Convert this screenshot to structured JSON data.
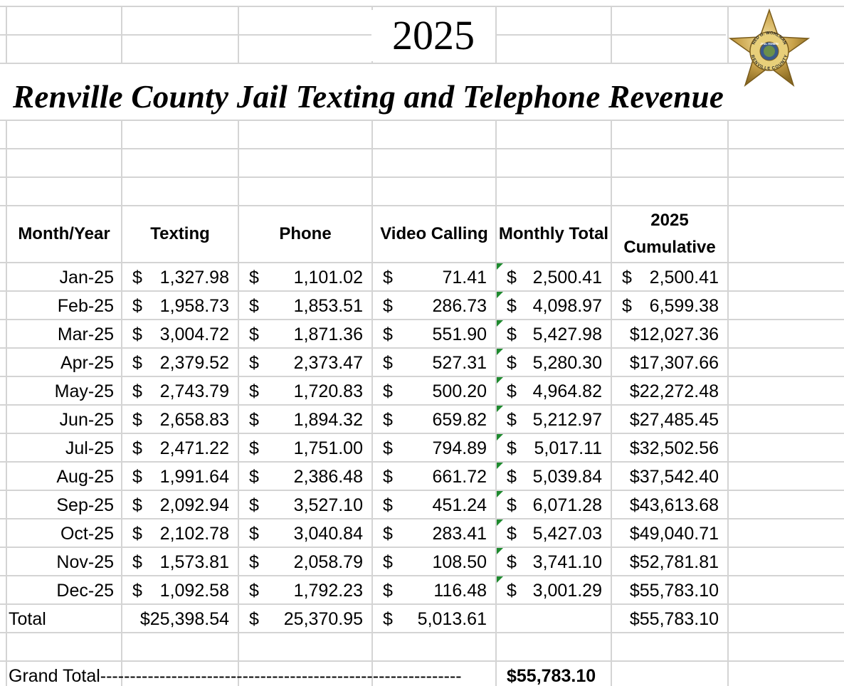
{
  "header": {
    "year": "2025",
    "title": "Renville County Jail Texting and Telephone Revenue",
    "badge": {
      "name": "NED G. WOHLMAN",
      "role": "JAIL ADMIN",
      "county": "RENVILLE COUNTY"
    }
  },
  "table": {
    "currency": "$",
    "columns": [
      "Month/Year",
      "Texting",
      "Phone",
      "Video Calling",
      "Monthly Total",
      "2025 Cumulative"
    ],
    "rows": [
      [
        "Jan-25",
        "1,327.98",
        "1,101.02",
        "71.41",
        "2,500.41",
        "2,500.41"
      ],
      [
        "Feb-25",
        "1,958.73",
        "1,853.51",
        "286.73",
        "4,098.97",
        "6,599.38"
      ],
      [
        "Mar-25",
        "3,004.72",
        "1,871.36",
        "551.90",
        "5,427.98",
        "$12,027.36"
      ],
      [
        "Apr-25",
        "2,379.52",
        "2,373.47",
        "527.31",
        "5,280.30",
        "$17,307.66"
      ],
      [
        "May-25",
        "2,743.79",
        "1,720.83",
        "500.20",
        "4,964.82",
        "$22,272.48"
      ],
      [
        "Jun-25",
        "2,658.83",
        "1,894.32",
        "659.82",
        "5,212.97",
        "$27,485.45"
      ],
      [
        "Jul-25",
        "2,471.22",
        "1,751.00",
        "794.89",
        "5,017.11",
        "$32,502.56"
      ],
      [
        "Aug-25",
        "1,991.64",
        "2,386.48",
        "661.72",
        "5,039.84",
        "$37,542.40"
      ],
      [
        "Sep-25",
        "2,092.94",
        "3,527.10",
        "451.24",
        "6,071.28",
        "$43,613.68"
      ],
      [
        "Oct-25",
        "2,102.78",
        "3,040.84",
        "283.41",
        "5,427.03",
        "$49,040.71"
      ],
      [
        "Nov-25",
        "1,573.81",
        "2,058.79",
        "108.50",
        "3,741.10",
        "$52,781.81"
      ],
      [
        "Dec-25",
        "1,092.58",
        "1,792.23",
        "116.48",
        "3,001.29",
        "$55,783.10"
      ]
    ],
    "total": [
      "Total",
      "$25,398.54",
      "25,370.95",
      "5,013.61",
      null,
      "$55,783.10"
    ],
    "grand_total": {
      "label": "Grand Total-------------------------------------------------------------",
      "value": "$55,783.10"
    }
  }
}
